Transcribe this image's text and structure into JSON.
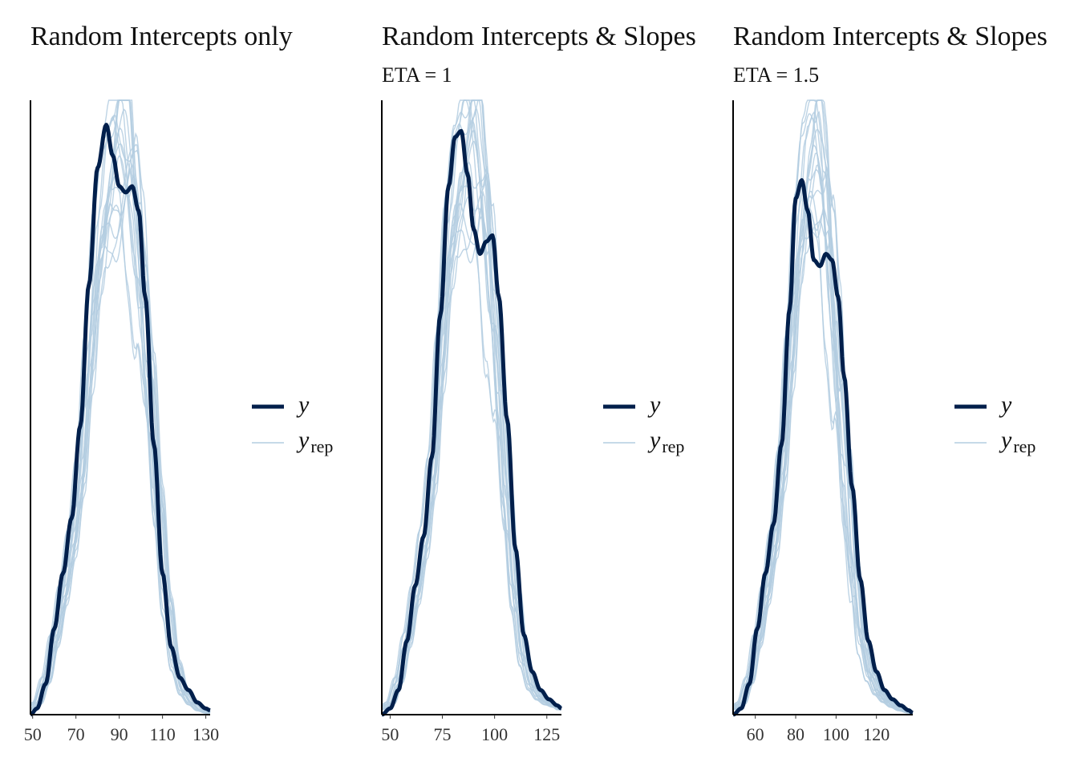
{
  "colors": {
    "y": "#011f4b",
    "yrep": "#b3cde0",
    "axis": "#000000"
  },
  "legend": {
    "y_label": "y",
    "yrep_label": "y",
    "yrep_sub": "rep"
  },
  "chart_data": [
    {
      "type": "line",
      "title": "Random Intercepts only",
      "subtitle": "",
      "xlim": [
        49,
        132
      ],
      "xticks": [
        50,
        70,
        90,
        110,
        130
      ],
      "grid": false,
      "legend_position": "right",
      "series": [
        {
          "name": "y",
          "x": [
            49,
            52,
            56,
            60,
            64,
            68,
            72,
            76,
            80,
            84,
            87,
            90,
            93,
            96,
            99,
            102,
            106,
            110,
            114,
            118,
            122,
            126,
            130,
            132
          ],
          "values": [
            0.0,
            0.01,
            0.05,
            0.14,
            0.23,
            0.32,
            0.47,
            0.7,
            0.89,
            0.96,
            0.91,
            0.86,
            0.85,
            0.86,
            0.82,
            0.68,
            0.44,
            0.23,
            0.11,
            0.06,
            0.04,
            0.02,
            0.01,
            0.007
          ]
        },
        {
          "name": "y_rep",
          "x": [
            49,
            52,
            56,
            60,
            64,
            68,
            72,
            76,
            80,
            84,
            88,
            92,
            96,
            100,
            104,
            108,
            112,
            116,
            120,
            124,
            128,
            132
          ],
          "values": [
            0.01,
            0.02,
            0.06,
            0.13,
            0.21,
            0.3,
            0.42,
            0.62,
            0.82,
            0.93,
            0.98,
            1.0,
            0.95,
            0.8,
            0.6,
            0.38,
            0.2,
            0.09,
            0.04,
            0.02,
            0.008,
            0.003
          ]
        }
      ]
    },
    {
      "type": "line",
      "title": "Random Intercepts & Slopes",
      "subtitle": "ETA = 1",
      "xlim": [
        46,
        132
      ],
      "xticks": [
        50,
        75,
        100,
        125
      ],
      "grid": false,
      "legend_position": "right",
      "series": [
        {
          "name": "y",
          "x": [
            46,
            50,
            54,
            58,
            62,
            66,
            70,
            74,
            78,
            81,
            84,
            87,
            90,
            93,
            96,
            99,
            102,
            106,
            110,
            114,
            118,
            122,
            126,
            130,
            132
          ],
          "values": [
            0.0,
            0.01,
            0.04,
            0.12,
            0.21,
            0.29,
            0.42,
            0.65,
            0.86,
            0.94,
            0.95,
            0.88,
            0.79,
            0.75,
            0.77,
            0.78,
            0.68,
            0.48,
            0.27,
            0.13,
            0.07,
            0.04,
            0.025,
            0.015,
            0.01
          ]
        },
        {
          "name": "y_rep",
          "x": [
            46,
            50,
            54,
            58,
            62,
            66,
            70,
            74,
            78,
            82,
            86,
            90,
            94,
            98,
            102,
            106,
            110,
            114,
            118,
            122,
            126,
            130,
            132
          ],
          "values": [
            0.01,
            0.02,
            0.06,
            0.13,
            0.21,
            0.3,
            0.42,
            0.62,
            0.83,
            0.94,
            0.99,
            1.0,
            0.94,
            0.8,
            0.6,
            0.38,
            0.21,
            0.1,
            0.05,
            0.03,
            0.02,
            0.015,
            0.01
          ]
        }
      ]
    },
    {
      "type": "line",
      "title": "Random Intercepts & Slopes",
      "subtitle": "ETA = 1.5",
      "xlim": [
        49,
        138
      ],
      "xticks": [
        60,
        80,
        100,
        120
      ],
      "grid": false,
      "legend_position": "right",
      "series": [
        {
          "name": "y",
          "x": [
            49,
            53,
            57,
            61,
            65,
            69,
            73,
            77,
            80,
            83,
            86,
            89,
            92,
            95,
            98,
            101,
            104,
            108,
            112,
            116,
            120,
            124,
            128,
            132,
            136,
            138
          ],
          "values": [
            0.0,
            0.01,
            0.05,
            0.14,
            0.23,
            0.31,
            0.44,
            0.66,
            0.84,
            0.87,
            0.82,
            0.74,
            0.73,
            0.75,
            0.74,
            0.68,
            0.55,
            0.37,
            0.22,
            0.12,
            0.07,
            0.04,
            0.025,
            0.015,
            0.007,
            0.003
          ]
        },
        {
          "name": "y_rep",
          "x": [
            49,
            53,
            57,
            61,
            65,
            69,
            73,
            77,
            81,
            85,
            89,
            93,
            97,
            101,
            105,
            109,
            113,
            117,
            121,
            125,
            129,
            133,
            138
          ],
          "values": [
            0.01,
            0.02,
            0.06,
            0.13,
            0.21,
            0.3,
            0.43,
            0.62,
            0.83,
            0.95,
            1.0,
            0.96,
            0.82,
            0.63,
            0.42,
            0.25,
            0.13,
            0.07,
            0.04,
            0.025,
            0.015,
            0.008,
            0.003
          ]
        }
      ]
    }
  ]
}
